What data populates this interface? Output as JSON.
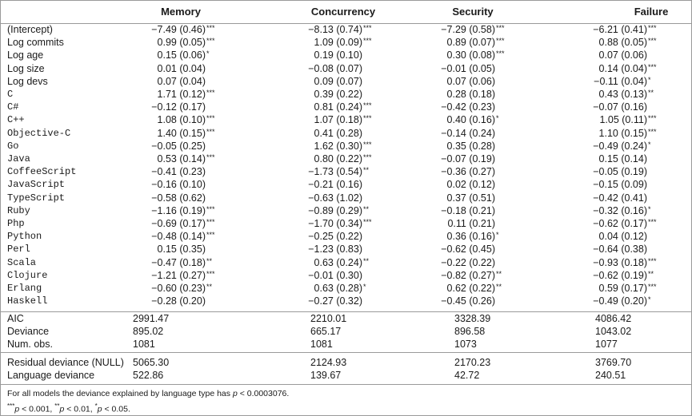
{
  "table": {
    "headers": [
      "Memory",
      "Concurrency",
      "Security",
      "Failure"
    ],
    "controls": [
      {
        "label": "(Intercept)",
        "cells": [
          [
            "−7.49 (0.46)",
            "***"
          ],
          [
            "−8.13 (0.74)",
            "***"
          ],
          [
            "−7.29 (0.58)",
            "***"
          ],
          [
            "−6.21 (0.41)",
            "***"
          ]
        ]
      },
      {
        "label": "Log commits",
        "cells": [
          [
            "0.99 (0.05)",
            "***"
          ],
          [
            "1.09 (0.09)",
            "***"
          ],
          [
            "0.89 (0.07)",
            "***"
          ],
          [
            "0.88 (0.05)",
            "***"
          ]
        ]
      },
      {
        "label": "Log age",
        "cells": [
          [
            "0.15 (0.06)",
            "*"
          ],
          [
            "0.19 (0.10)"
          ],
          [
            "0.30 (0.08)",
            "***"
          ],
          [
            "0.07 (0.06)"
          ]
        ]
      },
      {
        "label": "Log size",
        "cells": [
          [
            "0.01 (0.04)"
          ],
          [
            "−0.08 (0.07)"
          ],
          [
            "−0.01 (0.05)"
          ],
          [
            "0.14 (0.04)",
            "***"
          ]
        ]
      },
      {
        "label": "Log devs",
        "cells": [
          [
            "0.07 (0.04)"
          ],
          [
            "0.09 (0.07)"
          ],
          [
            "0.07 (0.06)"
          ],
          [
            "−0.11 (0.04)",
            "*"
          ]
        ]
      }
    ],
    "languages": [
      {
        "label": "C",
        "cells": [
          [
            "1.71 (0.12)",
            "***"
          ],
          [
            "0.39 (0.22)"
          ],
          [
            "0.28 (0.18)"
          ],
          [
            "0.43 (0.13)",
            "**"
          ]
        ]
      },
      {
        "label": "C#",
        "cells": [
          [
            "−0.12 (0.17)"
          ],
          [
            "0.81 (0.24)",
            "***"
          ],
          [
            "−0.42 (0.23)"
          ],
          [
            "−0.07 (0.16)"
          ]
        ]
      },
      {
        "label": "C++",
        "cells": [
          [
            "1.08 (0.10)",
            "***"
          ],
          [
            "1.07 (0.18)",
            "***"
          ],
          [
            "0.40 (0.16)",
            "*"
          ],
          [
            "1.05 (0.11)",
            "***"
          ]
        ]
      },
      {
        "label": "Objective-C",
        "cells": [
          [
            "1.40 (0.15)",
            "***"
          ],
          [
            "0.41 (0.28)"
          ],
          [
            "−0.14 (0.24)"
          ],
          [
            "1.10 (0.15)",
            "***"
          ]
        ]
      },
      {
        "label": "Go",
        "cells": [
          [
            "−0.05 (0.25)"
          ],
          [
            "1.62 (0.30)",
            "***"
          ],
          [
            "0.35 (0.28)"
          ],
          [
            "−0.49 (0.24)",
            "*"
          ]
        ]
      },
      {
        "label": "Java",
        "cells": [
          [
            "0.53 (0.14)",
            "***"
          ],
          [
            "0.80 (0.22)",
            "***"
          ],
          [
            "−0.07 (0.19)"
          ],
          [
            "0.15 (0.14)"
          ]
        ]
      },
      {
        "label": "CoffeeScript",
        "cells": [
          [
            "−0.41 (0.23)"
          ],
          [
            "−1.73 (0.54)",
            "**"
          ],
          [
            "−0.36 (0.27)"
          ],
          [
            "−0.05 (0.19)"
          ]
        ]
      },
      {
        "label": "JavaScript",
        "cells": [
          [
            "−0.16 (0.10)"
          ],
          [
            "−0.21 (0.16)"
          ],
          [
            "0.02 (0.12)"
          ],
          [
            "−0.15 (0.09)"
          ]
        ]
      },
      {
        "label": "TypeScript",
        "cells": [
          [
            "−0.58 (0.62)"
          ],
          [
            "−0.63 (1.02)"
          ],
          [
            "0.37 (0.51)"
          ],
          [
            "−0.42 (0.41)"
          ]
        ]
      },
      {
        "label": "Ruby",
        "cells": [
          [
            "−1.16 (0.19)",
            "***"
          ],
          [
            "−0.89 (0.29)",
            "**"
          ],
          [
            "−0.18 (0.21)"
          ],
          [
            "−0.32 (0.16)",
            "*"
          ]
        ]
      },
      {
        "label": "Php",
        "cells": [
          [
            "−0.69 (0.17)",
            "***"
          ],
          [
            "−1.70 (0.34)",
            "***"
          ],
          [
            "0.11 (0.21)"
          ],
          [
            "−0.62 (0.17)",
            "***"
          ]
        ]
      },
      {
        "label": "Python",
        "cells": [
          [
            "−0.48 (0.14)",
            "***"
          ],
          [
            "−0.25 (0.22)"
          ],
          [
            "0.36 (0.16)",
            "*"
          ],
          [
            "0.04 (0.12)"
          ]
        ]
      },
      {
        "label": "Perl",
        "cells": [
          [
            "0.15 (0.35)"
          ],
          [
            "−1.23 (0.83)"
          ],
          [
            "−0.62 (0.45)"
          ],
          [
            "−0.64 (0.38)"
          ]
        ]
      },
      {
        "label": "Scala",
        "cells": [
          [
            "−0.47 (0.18)",
            "**"
          ],
          [
            "0.63 (0.24)",
            "**"
          ],
          [
            "−0.22 (0.22)"
          ],
          [
            "−0.93 (0.18)",
            "***"
          ]
        ]
      },
      {
        "label": "Clojure",
        "cells": [
          [
            "−1.21 (0.27)",
            "***"
          ],
          [
            "−0.01 (0.30)"
          ],
          [
            "−0.82 (0.27)",
            "**"
          ],
          [
            "−0.62 (0.19)",
            "**"
          ]
        ]
      },
      {
        "label": "Erlang",
        "cells": [
          [
            "−0.60 (0.23)",
            "**"
          ],
          [
            "0.63 (0.28)",
            "*"
          ],
          [
            "0.62 (0.22)",
            "**"
          ],
          [
            "0.59 (0.17)",
            "***"
          ]
        ]
      },
      {
        "label": "Haskell",
        "cells": [
          [
            "−0.28 (0.20)"
          ],
          [
            "−0.27 (0.32)"
          ],
          [
            "−0.45 (0.26)"
          ],
          [
            "−0.49 (0.20)",
            "*"
          ]
        ]
      }
    ],
    "fit": [
      {
        "label": "AIC",
        "cells": [
          "2991.47",
          "2210.01",
          "3328.39",
          "4086.42"
        ]
      },
      {
        "label": "Deviance",
        "cells": [
          "895.02",
          "665.17",
          "896.58",
          "1043.02"
        ]
      },
      {
        "label": "Num. obs.",
        "cells": [
          "1081",
          "1081",
          "1073",
          "1077"
        ]
      }
    ],
    "deviance": [
      {
        "label": "Residual deviance (NULL)",
        "cells": [
          "5065.30",
          "2124.93",
          "2170.23",
          "3769.70"
        ]
      },
      {
        "label": "Language deviance",
        "cells": [
          "522.86",
          "139.67",
          "42.72",
          "240.51"
        ]
      }
    ]
  },
  "notes": [
    [
      {
        "t": "For all models the deviance explained by language type has "
      },
      {
        "t": "p",
        "style": "italic"
      },
      {
        "t": " < 0.0003076."
      }
    ],
    [
      {
        "t": "***",
        "style": "sup"
      },
      {
        "t": "p",
        "style": "italic"
      },
      {
        "t": " < 0.001, "
      },
      {
        "t": "**",
        "style": "sup"
      },
      {
        "t": "p",
        "style": "italic"
      },
      {
        "t": " < 0.01, "
      },
      {
        "t": "*",
        "style": "sup"
      },
      {
        "t": "p",
        "style": "italic"
      },
      {
        "t": " < 0.05."
      }
    ]
  ]
}
